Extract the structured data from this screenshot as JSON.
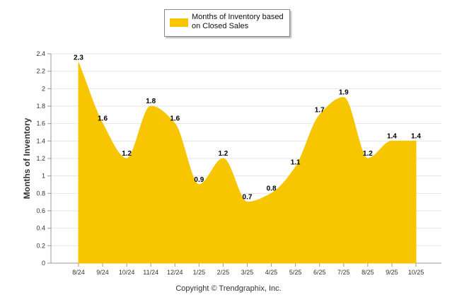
{
  "chart_data": {
    "type": "area",
    "title": "",
    "xlabel": "",
    "ylabel": "Months of Inventory",
    "ylim": [
      0,
      2.4
    ],
    "yticks": [
      "0",
      "0.2",
      "0.4",
      "0.6",
      "0.8",
      "1",
      "1.2",
      "1.4",
      "1.6",
      "1.8",
      "2",
      "2.2",
      "2.4"
    ],
    "categories": [
      "8/24",
      "9/24",
      "10/24",
      "11/24",
      "12/24",
      "1/25",
      "2/25",
      "3/25",
      "4/25",
      "5/25",
      "6/25",
      "7/25",
      "8/25",
      "9/25",
      "10/25"
    ],
    "series": [
      {
        "name": "Months of Inventory based on Closed Sales",
        "values": [
          2.3,
          1.6,
          1.2,
          1.8,
          1.6,
          0.9,
          1.2,
          0.7,
          0.8,
          1.1,
          1.7,
          1.9,
          1.2,
          1.4,
          1.4
        ],
        "labels": [
          "2.3",
          "1.6",
          "1.2",
          "1.8",
          "1.6",
          "0.9",
          "1.2",
          "0.7",
          "0.8",
          "1.1",
          "1.7",
          "1.9",
          "1.2",
          "1.4",
          "1.4"
        ],
        "color": "#f7c600"
      }
    ],
    "grid": true,
    "legend": "top-center"
  },
  "legend": {
    "line1": "Months of Inventory based",
    "line2": "on Closed Sales"
  },
  "footer": "Copyright © Trendgraphix, Inc."
}
